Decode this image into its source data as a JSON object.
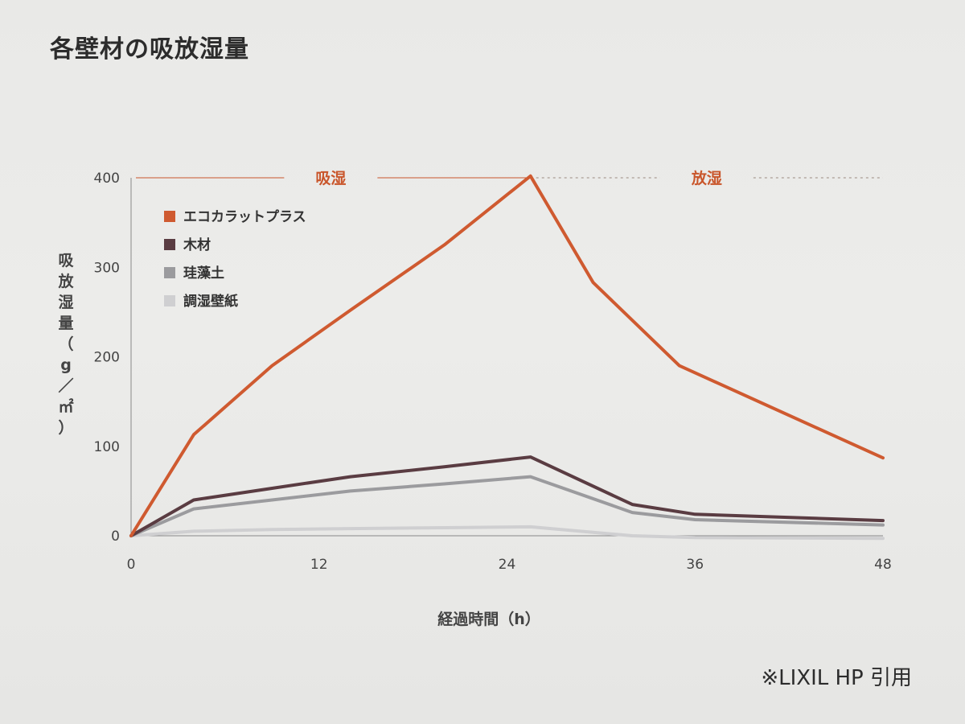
{
  "page": {
    "title": "各壁材の吸放湿量",
    "credit": "※LIXIL HP 引用"
  },
  "chart_data": {
    "type": "line",
    "title": "",
    "xlabel": "経過時間（h）",
    "ylabel": "吸放湿量（g／㎡）",
    "x_ticks": [
      0,
      12,
      24,
      36,
      48
    ],
    "y_ticks": [
      0,
      100,
      200,
      300,
      400
    ],
    "xlim": [
      0,
      48
    ],
    "ylim": [
      0,
      400
    ],
    "grid": false,
    "legend_position": "top-left",
    "phases": [
      {
        "label": "吸湿",
        "x_start": 0,
        "x_end": 25.5,
        "style": "solid"
      },
      {
        "label": "放湿",
        "x_start": 25.5,
        "x_end": 48,
        "style": "dotted"
      }
    ],
    "series": [
      {
        "name": "エコカラットプラス",
        "color": "#cf5a30",
        "x": [
          0,
          4,
          9,
          14,
          20,
          25.5,
          29.5,
          35,
          48
        ],
        "y": [
          0,
          113,
          190,
          252,
          325,
          402,
          283,
          190,
          87
        ]
      },
      {
        "name": "木材",
        "color": "#5a3c42",
        "x": [
          0,
          4,
          9,
          14,
          20,
          25.5,
          32,
          36,
          48
        ],
        "y": [
          0,
          40,
          53,
          66,
          77,
          88,
          35,
          24,
          17
        ]
      },
      {
        "name": "珪藻土",
        "color": "#9b9b9e",
        "x": [
          0,
          4,
          9,
          14,
          20,
          25.5,
          32,
          36,
          48
        ],
        "y": [
          0,
          30,
          40,
          50,
          58,
          66,
          26,
          18,
          12
        ]
      },
      {
        "name": "調湿壁紙",
        "color": "#cfcfd1",
        "x": [
          0,
          4,
          9,
          14,
          20,
          25.5,
          32,
          36,
          48
        ],
        "y": [
          0,
          5,
          7,
          8,
          9,
          10,
          0,
          -2,
          -3
        ]
      }
    ]
  }
}
